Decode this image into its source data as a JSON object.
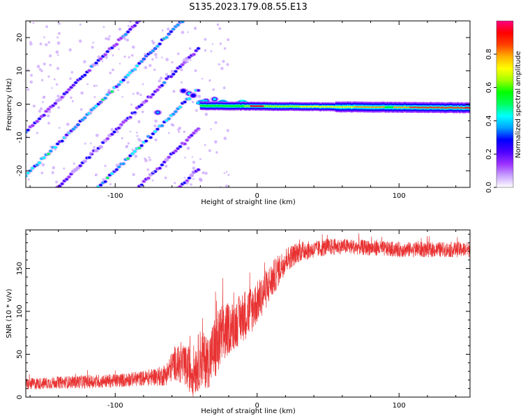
{
  "figure_title": "S135.2023.179.08.55.E13",
  "chart_data": [
    {
      "id": "spectrogram",
      "type": "heatmap",
      "title": "",
      "xlabel": "Height of straight line (km)",
      "ylabel": "Frequency (Hz)",
      "xlim": [
        -163,
        150
      ],
      "ylim": [
        -25,
        25
      ],
      "xticks": [
        -100,
        0,
        100
      ],
      "yticks": [
        -20,
        -10,
        0,
        10,
        20
      ],
      "colorbar": {
        "label": "Normalized spectral amplitude",
        "range": [
          0,
          1
        ],
        "ticks": [
          0.0,
          0.2,
          0.4,
          0.6,
          0.8
        ],
        "tick_labels": [
          "0.0",
          "0.2",
          "0.4",
          "0.6",
          "0.8"
        ],
        "colors": [
          "#ffffff",
          "#c8a0ff",
          "#9b30ff",
          "#4b00ff",
          "#0000ff",
          "#00a0ff",
          "#00ffff",
          "#00ff60",
          "#00ff00",
          "#a0ff00",
          "#ffff00",
          "#ffb000",
          "#ff4000",
          "#ff0000",
          "#ff0080"
        ]
      },
      "features": {
        "center_band": {
          "x_start": -40,
          "x_end": 150,
          "frequency": -0.5,
          "peak_x": [
            -5,
            5
          ]
        },
        "diagonal_streaks": {
          "x_start": -163,
          "x_end": -40,
          "slope_hz_per_km": 0.42,
          "offsets_hz": [
            60,
            47,
            34,
            22,
            10,
            -2
          ]
        }
      }
    },
    {
      "id": "snr",
      "type": "line",
      "title": "",
      "xlabel": "Height of straight line (km)",
      "ylabel": "SNR (10 * v/v)",
      "xlim": [
        -163,
        150
      ],
      "ylim": [
        0,
        195
      ],
      "xticks": [
        -100,
        0,
        100
      ],
      "yticks": [
        0,
        50,
        100,
        150
      ],
      "color": "#e83232",
      "series_profile": {
        "x": [
          -163,
          -140,
          -120,
          -100,
          -80,
          -65,
          -58,
          -50,
          -45,
          -40,
          -35,
          -30,
          -25,
          -20,
          -15,
          -10,
          -5,
          0,
          10,
          20,
          30,
          40,
          50,
          60,
          80,
          100,
          120,
          150
        ],
        "y_mean": [
          15,
          17,
          18,
          19,
          22,
          25,
          40,
          35,
          30,
          45,
          40,
          55,
          70,
          80,
          85,
          95,
          100,
          110,
          135,
          160,
          170,
          172,
          175,
          176,
          174,
          172,
          172,
          172
        ],
        "y_spread": [
          7,
          7,
          8,
          8,
          9,
          12,
          20,
          25,
          30,
          35,
          30,
          40,
          40,
          30,
          28,
          30,
          30,
          25,
          22,
          15,
          12,
          10,
          10,
          9,
          9,
          9,
          9,
          9
        ]
      }
    }
  ]
}
